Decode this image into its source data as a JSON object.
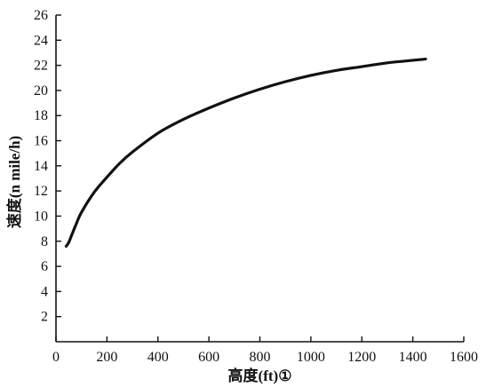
{
  "chart_data": {
    "type": "line",
    "title": "",
    "xlabel": "高度(ft)①",
    "ylabel": "速度(n mile/h)",
    "xlim": [
      0,
      1600
    ],
    "ylim": [
      0,
      26
    ],
    "x_ticks": [
      0,
      200,
      400,
      600,
      800,
      1000,
      1200,
      1400,
      1600
    ],
    "y_ticks": [
      2,
      4,
      6,
      8,
      10,
      12,
      14,
      16,
      18,
      20,
      22,
      24,
      26
    ],
    "x_tick_labels": [
      "0",
      "200",
      "400",
      "600",
      "800",
      "1000",
      "1200",
      "1400",
      "1600"
    ],
    "y_tick_labels": [
      "2",
      "4",
      "6",
      "8",
      "10",
      "12",
      "14",
      "16",
      "18",
      "20",
      "22",
      "24",
      "26"
    ],
    "grid": false,
    "series": [
      {
        "color": "#111111",
        "x": [
          40,
          50,
          60,
          80,
          100,
          150,
          200,
          250,
          300,
          400,
          500,
          600,
          700,
          800,
          900,
          1000,
          1100,
          1200,
          1300,
          1400,
          1450
        ],
        "y": [
          7.6,
          7.9,
          8.4,
          9.4,
          10.3,
          11.9,
          13.1,
          14.2,
          15.1,
          16.6,
          17.7,
          18.6,
          19.4,
          20.1,
          20.7,
          21.2,
          21.6,
          21.9,
          22.2,
          22.4,
          22.5
        ]
      }
    ]
  }
}
